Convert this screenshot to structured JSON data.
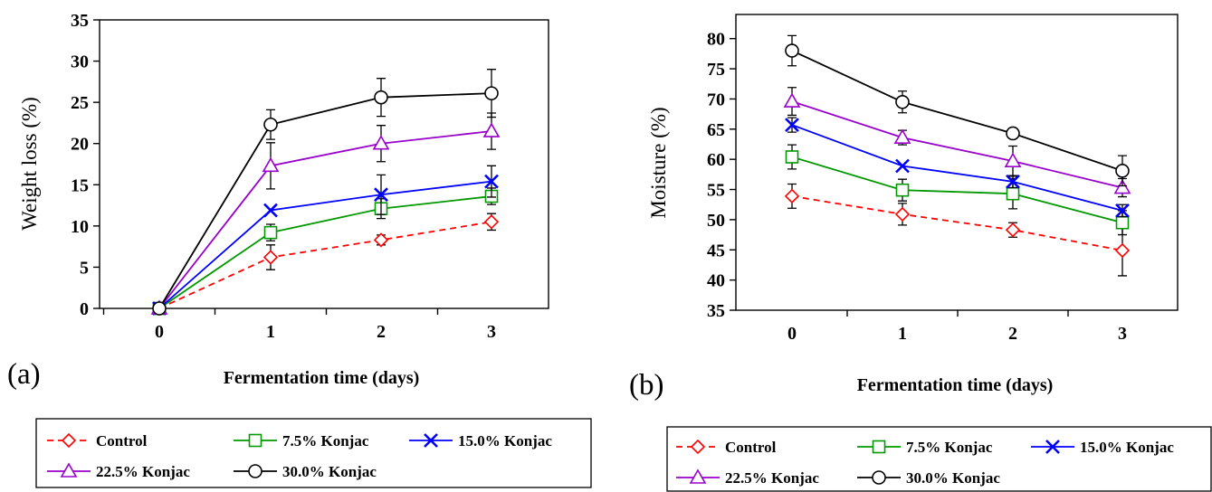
{
  "chart_data": [
    {
      "type": "line",
      "panel_label": "(a)",
      "xlabel": "Fermentation time (days)",
      "ylabel": "Weight loss (%)",
      "x": [
        0,
        1,
        2,
        3
      ],
      "xticks": [
        "0",
        "1",
        "2",
        "3"
      ],
      "yticks": [
        "0",
        "5",
        "10",
        "15",
        "20",
        "25",
        "30",
        "35"
      ],
      "ylim": [
        0,
        35
      ],
      "grid": false,
      "legend_position": "below",
      "series": [
        {
          "name": "Control",
          "color": "#ff0000",
          "dashed": true,
          "marker": "diamond",
          "values": [
            0,
            6.2,
            8.3,
            10.5
          ],
          "errors": [
            0,
            1.5,
            0.6,
            1.0
          ]
        },
        {
          "name": "7.5% Konjac",
          "color": "#009900",
          "dashed": false,
          "marker": "square",
          "values": [
            0,
            9.2,
            12.1,
            13.6
          ],
          "errors": [
            0,
            1.0,
            1.2,
            1.0
          ]
        },
        {
          "name": "15.0% Konjac",
          "color": "#0000ff",
          "dashed": false,
          "marker": "x",
          "values": [
            0,
            11.9,
            13.8,
            15.4
          ],
          "errors": [
            0,
            0,
            2.4,
            1.9
          ]
        },
        {
          "name": "22.5% Konjac",
          "color": "#9900cc",
          "dashed": false,
          "marker": "triangle",
          "values": [
            0,
            17.3,
            20.0,
            21.5
          ],
          "errors": [
            0,
            2.8,
            2.2,
            2.2
          ]
        },
        {
          "name": "30.0% Konjac",
          "color": "#000000",
          "dashed": false,
          "marker": "circle",
          "values": [
            0,
            22.3,
            25.6,
            26.1
          ],
          "errors": [
            0,
            1.8,
            2.3,
            2.9
          ]
        }
      ]
    },
    {
      "type": "line",
      "panel_label": "(b)",
      "xlabel": "Fermentation time (days)",
      "ylabel": "Moisture (%)",
      "x": [
        0,
        1,
        2,
        3
      ],
      "xticks": [
        "0",
        "1",
        "2",
        "3"
      ],
      "yticks": [
        "35",
        "40",
        "45",
        "50",
        "55",
        "60",
        "65",
        "70",
        "75",
        "80"
      ],
      "ylim": [
        35,
        84
      ],
      "grid": false,
      "legend_position": "below",
      "series": [
        {
          "name": "Control",
          "color": "#ff0000",
          "dashed": true,
          "marker": "diamond",
          "values": [
            53.9,
            50.9,
            48.3,
            44.9
          ],
          "errors": [
            2.0,
            1.8,
            1.2,
            4.2
          ]
        },
        {
          "name": "7.5% Konjac",
          "color": "#009900",
          "dashed": false,
          "marker": "square",
          "values": [
            60.4,
            54.9,
            54.3,
            49.5
          ],
          "errors": [
            2.0,
            1.8,
            2.5,
            2.0
          ]
        },
        {
          "name": "15.0% Konjac",
          "color": "#0000ff",
          "dashed": false,
          "marker": "x",
          "values": [
            65.7,
            58.9,
            56.3,
            51.5
          ],
          "errors": [
            1.2,
            0,
            1.0,
            1.0
          ]
        },
        {
          "name": "22.5% Konjac",
          "color": "#9900cc",
          "dashed": false,
          "marker": "triangle",
          "values": [
            69.6,
            63.6,
            59.7,
            55.3
          ],
          "errors": [
            2.3,
            1.2,
            2.5,
            1.5
          ]
        },
        {
          "name": "30.0% Konjac",
          "color": "#000000",
          "dashed": false,
          "marker": "circle",
          "values": [
            78.0,
            69.5,
            64.3,
            58.1
          ],
          "errors": [
            2.5,
            1.8,
            0.8,
            2.5
          ]
        }
      ]
    }
  ]
}
